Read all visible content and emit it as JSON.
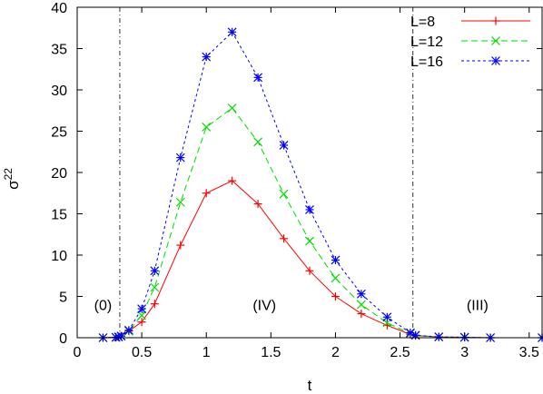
{
  "chart_data": {
    "type": "line",
    "xlabel": "t",
    "ylabel": "σ",
    "ylabel_sup": "22",
    "xlim": [
      0,
      3.6
    ],
    "ylim": [
      0,
      40
    ],
    "x_ticks": [
      0,
      0.5,
      1,
      1.5,
      2,
      2.5,
      3,
      3.5
    ],
    "x_tick_labels": [
      "0",
      "0.5",
      "1",
      "1.5",
      "2",
      "2.5",
      "3",
      "3.5"
    ],
    "y_ticks": [
      0,
      5,
      10,
      15,
      20,
      25,
      30,
      35,
      40
    ],
    "y_tick_labels": [
      "0",
      "5",
      "10",
      "15",
      "20",
      "25",
      "30",
      "35",
      "40"
    ],
    "grid": false,
    "legend_position": "top-right",
    "vlines": [
      0.33,
      2.6
    ],
    "region_labels": [
      {
        "text": "(0)",
        "x": 0.2,
        "y": 4.0
      },
      {
        "text": "(IV)",
        "x": 1.45,
        "y": 4.0
      },
      {
        "text": "(III)",
        "x": 3.1,
        "y": 4.0
      }
    ],
    "series": [
      {
        "name": "L=8",
        "color": "#ff0000",
        "marker": "plus",
        "dash": "",
        "x": [
          0.2,
          0.3,
          0.32,
          0.34,
          0.4,
          0.5,
          0.6,
          0.8,
          1.0,
          1.2,
          1.4,
          1.6,
          1.8,
          2.0,
          2.2,
          2.4,
          2.58,
          2.62,
          2.8,
          3.0,
          3.2,
          3.6
        ],
        "y": [
          0.0,
          0.05,
          0.1,
          0.2,
          0.8,
          1.9,
          4.1,
          11.2,
          17.5,
          19.0,
          16.2,
          12.0,
          8.1,
          5.0,
          2.9,
          1.5,
          0.4,
          0.25,
          0.1,
          0.05,
          0.0,
          0.0
        ]
      },
      {
        "name": "L=12",
        "color": "#00dd00",
        "marker": "x",
        "dash": "7,4",
        "x": [
          0.2,
          0.3,
          0.32,
          0.34,
          0.4,
          0.5,
          0.6,
          0.8,
          1.0,
          1.2,
          1.4,
          1.6,
          1.8,
          2.0,
          2.2,
          2.4,
          2.58,
          2.62,
          2.8,
          3.0,
          3.2,
          3.6
        ],
        "y": [
          0.0,
          0.05,
          0.1,
          0.2,
          0.8,
          2.7,
          6.1,
          16.4,
          25.5,
          27.8,
          23.7,
          17.4,
          11.7,
          7.2,
          4.0,
          1.8,
          0.5,
          0.3,
          0.1,
          0.05,
          0.0,
          0.0
        ]
      },
      {
        "name": "L=16",
        "color": "#0000ff",
        "marker": "star",
        "dash": "3,3",
        "x": [
          0.2,
          0.3,
          0.32,
          0.34,
          0.4,
          0.5,
          0.6,
          0.8,
          1.0,
          1.2,
          1.4,
          1.6,
          1.8,
          2.0,
          2.2,
          2.4,
          2.58,
          2.62,
          2.8,
          3.0,
          3.2,
          3.6
        ],
        "y": [
          0.0,
          0.05,
          0.1,
          0.2,
          0.9,
          3.5,
          8.1,
          21.8,
          34.0,
          37.0,
          31.5,
          23.3,
          15.5,
          9.4,
          5.3,
          2.5,
          0.6,
          0.3,
          0.1,
          0.05,
          0.0,
          0.0
        ]
      }
    ]
  }
}
